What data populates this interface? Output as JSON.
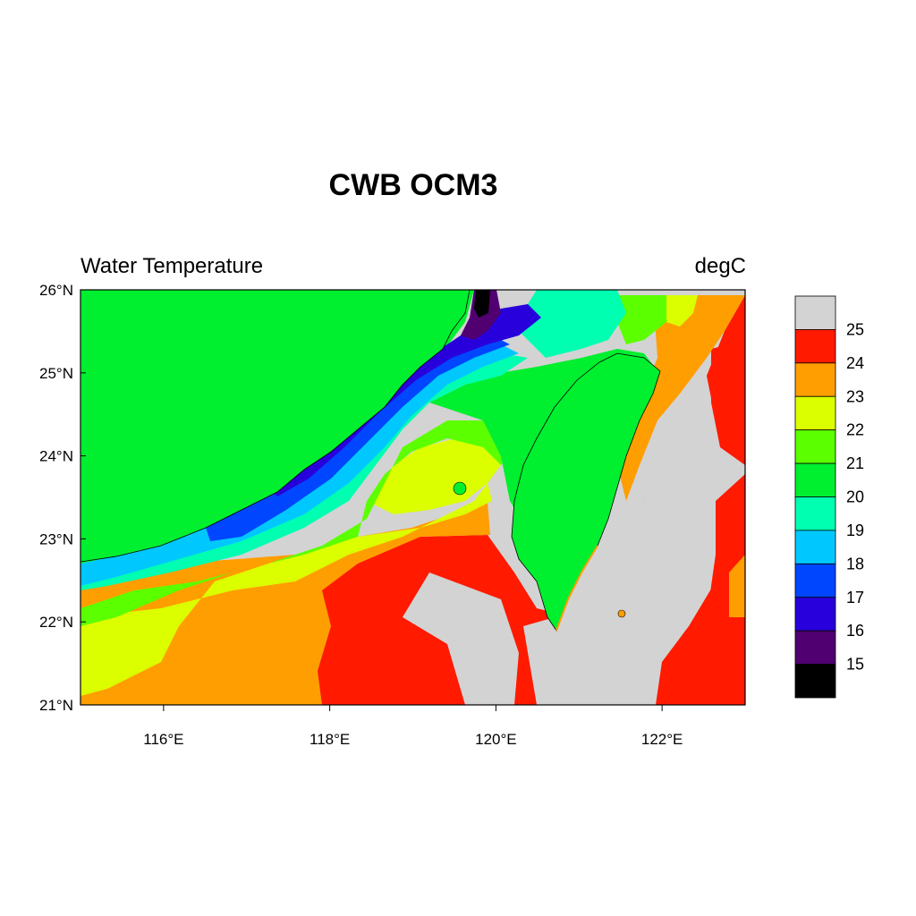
{
  "title": "CWB OCM3",
  "subtitle_left": "Water Temperature",
  "subtitle_right": "degC",
  "map": {
    "variable": "Water Temperature",
    "units": "degC",
    "lon_range": [
      115,
      123
    ],
    "lat_range": [
      21,
      26
    ],
    "lat_ticks": [
      {
        "value": 26,
        "label": "26°N"
      },
      {
        "value": 25,
        "label": "25°N"
      },
      {
        "value": 24,
        "label": "24°N"
      },
      {
        "value": 23,
        "label": "23°N"
      },
      {
        "value": 22,
        "label": "22°N"
      },
      {
        "value": 21,
        "label": "21°N"
      }
    ],
    "lon_ticks": [
      {
        "value": 116,
        "label": "116°E"
      },
      {
        "value": 118,
        "label": "118°E"
      },
      {
        "value": 120,
        "label": "120°E"
      },
      {
        "value": 122,
        "label": "122°E"
      }
    ]
  },
  "colorbar": {
    "colors": [
      "#d3d3d3",
      "#ff1a00",
      "#ff9e00",
      "#dcff00",
      "#5cff00",
      "#00ef2f",
      "#00ffb0",
      "#00c8ff",
      "#0046ff",
      "#2800dc",
      "#500070",
      "#000000"
    ],
    "labels": [
      "25",
      "24",
      "23",
      "22",
      "21",
      "20",
      "19",
      "18",
      "17",
      "16",
      "15"
    ]
  },
  "colors": {
    "land": "#00ef2f",
    "warm_water": "#d3d3d3",
    "coast": "#000000"
  }
}
